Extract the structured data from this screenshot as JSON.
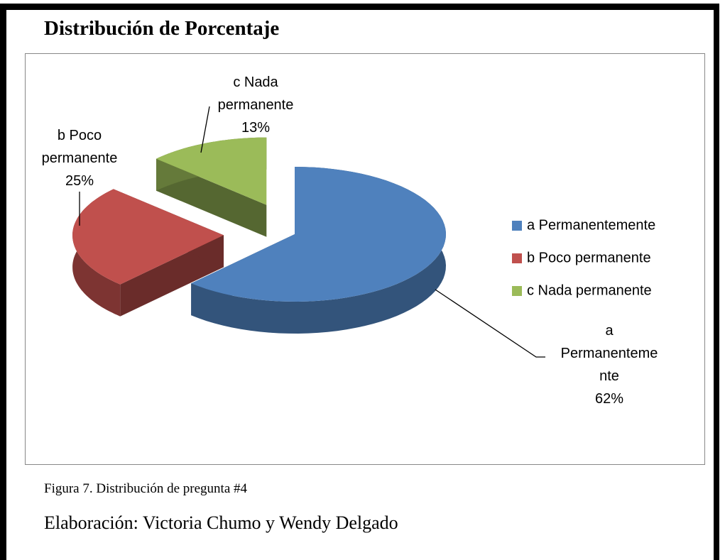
{
  "chart_data": {
    "type": "pie",
    "title": "Distribución de Porcentaje",
    "categories": [
      "a Permanentemente",
      "b Poco permanente",
      "c Nada permanente"
    ],
    "values": [
      62,
      25,
      13
    ],
    "value_labels": [
      "62%",
      "25%",
      "13%"
    ],
    "colors": [
      "#4f81bd",
      "#c0504d",
      "#9bbb59"
    ],
    "legend": "right",
    "exploded": true
  },
  "caption": "Figura 7. Distribución de pregunta #4",
  "credit": "Elaboración: Victoria Chumo y Wendy Delgado"
}
